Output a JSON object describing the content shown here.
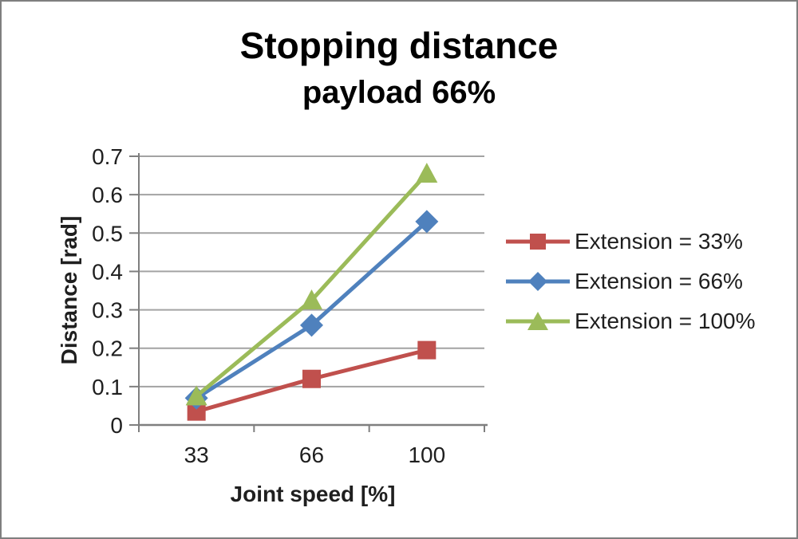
{
  "chart_data": {
    "type": "line",
    "title": "Stopping distance",
    "subtitle": "payload 66%",
    "xlabel": "Joint speed [%]",
    "ylabel": "Distance [rad]",
    "categories": [
      "33",
      "66",
      "100"
    ],
    "ylim": [
      0,
      0.7
    ],
    "y_ticks": [
      "0",
      "0.1",
      "0.2",
      "0.3",
      "0.4",
      "0.5",
      "0.6",
      "0.7"
    ],
    "grid": "horizontal",
    "legend_position": "right",
    "series": [
      {
        "name": "Extension = 33%",
        "marker": "square",
        "color": "#C0504D",
        "values": [
          0.035,
          0.12,
          0.195
        ]
      },
      {
        "name": "Extension = 66%",
        "marker": "diamond",
        "color": "#4F81BD",
        "values": [
          0.07,
          0.26,
          0.53
        ]
      },
      {
        "name": "Extension = 100%",
        "marker": "triangle",
        "color": "#9BBB59",
        "values": [
          0.075,
          0.325,
          0.655
        ]
      }
    ],
    "colors": {
      "gridline": "#A3A3A3",
      "axis": "#7F7F7F",
      "tick_text": "#1F1F1F",
      "title_text": "#000000",
      "frame_border": "#7F7F7F"
    }
  }
}
